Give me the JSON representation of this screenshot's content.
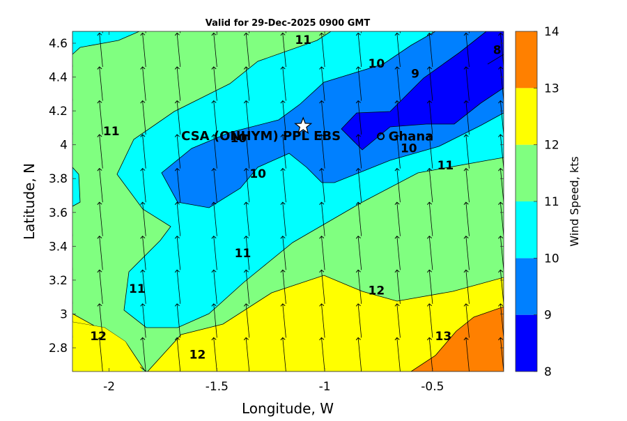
{
  "chart_data": {
    "type": "heatmap",
    "subtype": "filled-contour with wind-vector arrows",
    "title": "Valid for 29-Dec-2025 0900 GMT",
    "xlabel": "Longitude, W",
    "ylabel": "Latitude, N",
    "xlim": [
      -2.17,
      -0.17
    ],
    "ylim": [
      2.66,
      4.67
    ],
    "x_ticks": [
      -2,
      -1.5,
      -1,
      -0.5
    ],
    "x_tick_labels": [
      "-2",
      "-1.5",
      "-1",
      "-0.5"
    ],
    "y_ticks": [
      2.8,
      3,
      3.2,
      3.4,
      3.6,
      3.8,
      4,
      4.2,
      4.4,
      4.6
    ],
    "y_tick_labels": [
      "2.8",
      "3",
      "3.2",
      "3.4",
      "3.6",
      "3.8",
      "4",
      "4.2",
      "4.4",
      "4.6"
    ],
    "grid": false,
    "colorbar": {
      "label": "Wind Speed, kts",
      "levels": [
        8,
        9,
        10,
        11,
        12,
        13,
        14
      ],
      "tick_labels": [
        "8",
        "9",
        "10",
        "11",
        "12",
        "13",
        "14"
      ],
      "colors": [
        "#0000ff",
        "#0080ff",
        "#00ffff",
        "#80ff80",
        "#ffff00",
        "#ff8000"
      ]
    },
    "contour_labels": [
      {
        "text": "11",
        "lon": -1.1,
        "lat": 4.62
      },
      {
        "text": "10",
        "lon": -0.76,
        "lat": 4.48
      },
      {
        "text": "9",
        "lon": -0.58,
        "lat": 4.42
      },
      {
        "text": "8",
        "lon": -0.2,
        "lat": 4.56
      },
      {
        "text": "11",
        "lon": -1.99,
        "lat": 4.08
      },
      {
        "text": "10",
        "lon": -1.4,
        "lat": 4.04
      },
      {
        "text": "10",
        "lon": -1.31,
        "lat": 3.83
      },
      {
        "text": "10",
        "lon": -0.61,
        "lat": 3.98
      },
      {
        "text": "11",
        "lon": -0.44,
        "lat": 3.88
      },
      {
        "text": "11",
        "lon": -1.38,
        "lat": 3.36
      },
      {
        "text": "11",
        "lon": -1.87,
        "lat": 3.15
      },
      {
        "text": "12",
        "lon": -0.76,
        "lat": 3.14
      },
      {
        "text": "12",
        "lon": -2.05,
        "lat": 2.87
      },
      {
        "text": "12",
        "lon": -1.59,
        "lat": 2.76
      },
      {
        "text": "13",
        "lon": -0.45,
        "lat": 2.87
      }
    ],
    "annotations": [
      {
        "text": "CSA (ONHYM) PPL EBS",
        "marker": "star",
        "lon": -1.1,
        "lat": 4.11
      },
      {
        "text": "Ghana",
        "marker": "circle",
        "lon": -0.74,
        "lat": 4.05
      }
    ],
    "wind_vectors": {
      "direction": "northward with slight westward tilt",
      "columns_lon": [
        -2.17,
        -2.03,
        -1.83,
        -1.67,
        -1.5,
        -1.35,
        -1.18,
        -1.0,
        -0.83,
        -0.65,
        -0.5,
        -0.33,
        -0.17
      ],
      "rows_lat": [
        2.66,
        2.86,
        3.06,
        3.26,
        3.46,
        3.66,
        3.86,
        4.06,
        4.26,
        4.46,
        4.66
      ],
      "length_lat": 0.2,
      "tilt_lon": -0.015
    }
  }
}
